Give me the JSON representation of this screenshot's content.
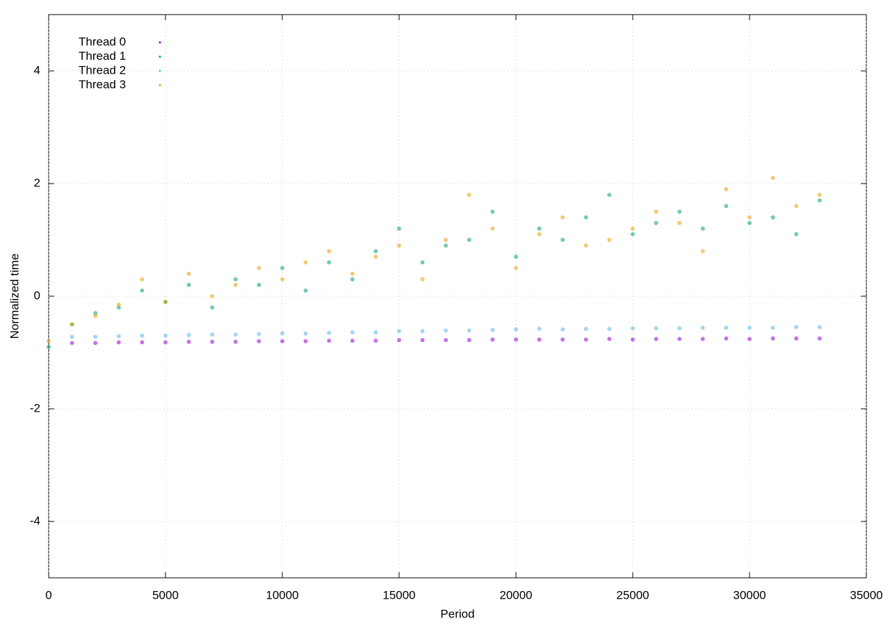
{
  "chart_data": {
    "type": "scatter",
    "xlabel": "Period",
    "ylabel": "Normalized time",
    "xlim": [
      0,
      35000
    ],
    "ylim": [
      -5,
      5
    ],
    "xticks": [
      0,
      5000,
      10000,
      15000,
      20000,
      25000,
      30000,
      35000
    ],
    "yticks": [
      -4,
      -2,
      0,
      2,
      4
    ],
    "grid": true,
    "legend": "upper left",
    "series": [
      {
        "name": "Thread 0",
        "color": "#9400d3",
        "x": [
          1000,
          2000,
          3000,
          4000,
          5000,
          6000,
          7000,
          8000,
          9000,
          10000,
          11000,
          12000,
          13000,
          14000,
          15000,
          16000,
          17000,
          18000,
          19000,
          20000,
          21000,
          22000,
          23000,
          24000,
          25000,
          26000,
          27000,
          28000,
          29000,
          30000,
          31000,
          32000,
          33000
        ],
        "values": [
          -0.83,
          -0.83,
          -0.82,
          -0.82,
          -0.82,
          -0.81,
          -0.81,
          -0.81,
          -0.8,
          -0.8,
          -0.8,
          -0.79,
          -0.79,
          -0.79,
          -0.78,
          -0.78,
          -0.78,
          -0.78,
          -0.77,
          -0.77,
          -0.77,
          -0.77,
          -0.77,
          -0.76,
          -0.77,
          -0.76,
          -0.76,
          -0.76,
          -0.75,
          -0.76,
          -0.75,
          -0.75,
          -0.75
        ]
      },
      {
        "name": "Thread 1",
        "color": "#009e73",
        "x": [
          0,
          1000,
          2000,
          3000,
          4000,
          5000,
          6000,
          7000,
          8000,
          9000,
          10000,
          11000,
          12000,
          13000,
          14000,
          15000,
          16000,
          17000,
          18000,
          19000,
          20000,
          21000,
          22000,
          23000,
          24000,
          25000,
          26000,
          27000,
          28000,
          29000,
          30000,
          31000,
          32000,
          33000
        ],
        "values": [
          -0.9,
          -0.5,
          -0.3,
          -0.2,
          0.1,
          -0.1,
          0.2,
          -0.2,
          0.3,
          0.2,
          0.5,
          0.1,
          0.6,
          0.3,
          0.8,
          1.2,
          0.6,
          0.9,
          1.0,
          1.5,
          0.7,
          1.2,
          1.0,
          1.4,
          1.8,
          1.1,
          1.3,
          1.5,
          1.2,
          1.6,
          1.3,
          1.4,
          1.1,
          1.7
        ]
      },
      {
        "name": "Thread 2",
        "color": "#56b4e9",
        "x": [
          1000,
          2000,
          3000,
          4000,
          5000,
          6000,
          7000,
          8000,
          9000,
          10000,
          11000,
          12000,
          13000,
          14000,
          15000,
          16000,
          17000,
          18000,
          19000,
          20000,
          21000,
          22000,
          23000,
          24000,
          25000,
          26000,
          27000,
          28000,
          29000,
          30000,
          31000,
          32000,
          33000
        ],
        "values": [
          -0.72,
          -0.72,
          -0.71,
          -0.7,
          -0.7,
          -0.69,
          -0.68,
          -0.68,
          -0.67,
          -0.66,
          -0.66,
          -0.65,
          -0.64,
          -0.64,
          -0.62,
          -0.62,
          -0.61,
          -0.61,
          -0.6,
          -0.59,
          -0.58,
          -0.59,
          -0.58,
          -0.58,
          -0.57,
          -0.57,
          -0.57,
          -0.56,
          -0.56,
          -0.56,
          -0.56,
          -0.55,
          -0.55
        ]
      },
      {
        "name": "Thread 3",
        "color": "#e69f00",
        "x": [
          0,
          1000,
          2000,
          3000,
          4000,
          5000,
          6000,
          7000,
          8000,
          9000,
          10000,
          11000,
          12000,
          13000,
          14000,
          15000,
          16000,
          17000,
          18000,
          19000,
          20000,
          21000,
          22000,
          23000,
          24000,
          25000,
          26000,
          27000,
          28000,
          29000,
          30000,
          31000,
          32000,
          33000
        ],
        "values": [
          -0.8,
          -0.5,
          -0.35,
          -0.15,
          0.3,
          -0.1,
          0.4,
          0.0,
          0.2,
          0.5,
          0.3,
          0.6,
          0.8,
          0.4,
          0.7,
          0.9,
          0.3,
          1.0,
          1.8,
          1.2,
          0.5,
          1.1,
          1.4,
          0.9,
          1.0,
          1.2,
          1.5,
          1.3,
          0.8,
          1.9,
          1.4,
          2.1,
          1.6,
          1.8
        ]
      }
    ]
  }
}
